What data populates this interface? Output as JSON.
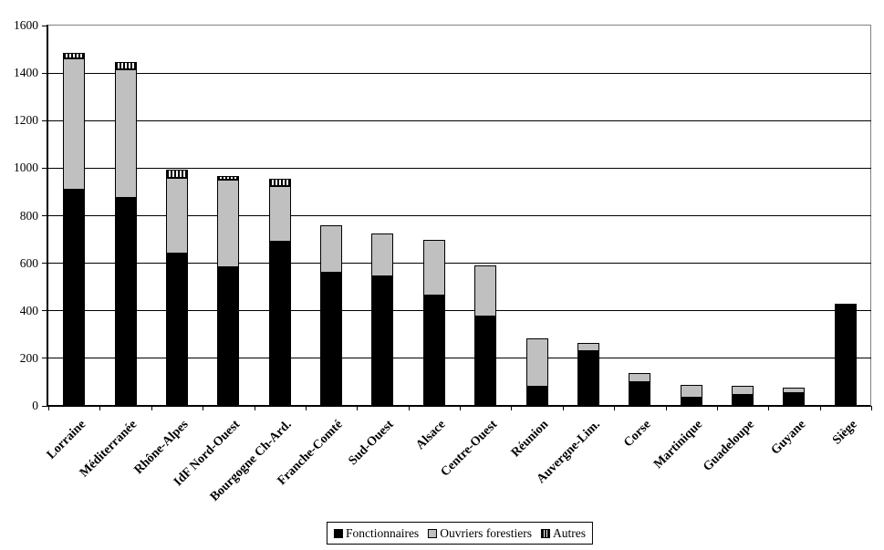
{
  "chart_data": {
    "type": "bar",
    "stacked": true,
    "title": "",
    "categories": [
      "Lorraine",
      "Méditerranée",
      "Rhône-Alpes",
      "IdF Nord-Ouest",
      "Bourgogne Ch-Ard.",
      "Franche-Comté",
      "Sud-Ouest",
      "Alsace",
      "Centre-Ouest",
      "Réunion",
      "Auvergne-Lim.",
      "Corse",
      "Martinique",
      "Guadeloupe",
      "Guyane",
      "Siège"
    ],
    "series": [
      {
        "name": "Fonctionnaires",
        "swatch": "solid-black",
        "color": "#000000",
        "values": [
          910,
          875,
          640,
          585,
          690,
          560,
          545,
          465,
          375,
          80,
          230,
          100,
          35,
          45,
          55,
          430
        ]
      },
      {
        "name": "Ouvriers forestiers",
        "swatch": "solid-gray",
        "color": "#c0c0c0",
        "values": [
          550,
          540,
          320,
          365,
          235,
          200,
          180,
          235,
          215,
          205,
          35,
          40,
          55,
          40,
          20,
          0
        ]
      },
      {
        "name": "Autres",
        "swatch": "vertical-stripes",
        "color": "#ffffff",
        "values": [
          25,
          30,
          35,
          15,
          30,
          0,
          0,
          0,
          0,
          0,
          0,
          0,
          0,
          0,
          0,
          0
        ]
      }
    ],
    "totals": [
      1485,
      1445,
      995,
      965,
      955,
      760,
      725,
      700,
      590,
      285,
      265,
      140,
      90,
      85,
      75,
      430
    ],
    "ylim": [
      0,
      1600
    ],
    "yticks": [
      0,
      200,
      400,
      600,
      800,
      1000,
      1200,
      1400,
      1600
    ],
    "xlabel": "",
    "ylabel": "",
    "grid": true,
    "legend_position": "bottom",
    "axis_color": "#000000",
    "gridline_color": "#000000",
    "plot_frame_color": "#808080",
    "background_color": "#ffffff"
  }
}
